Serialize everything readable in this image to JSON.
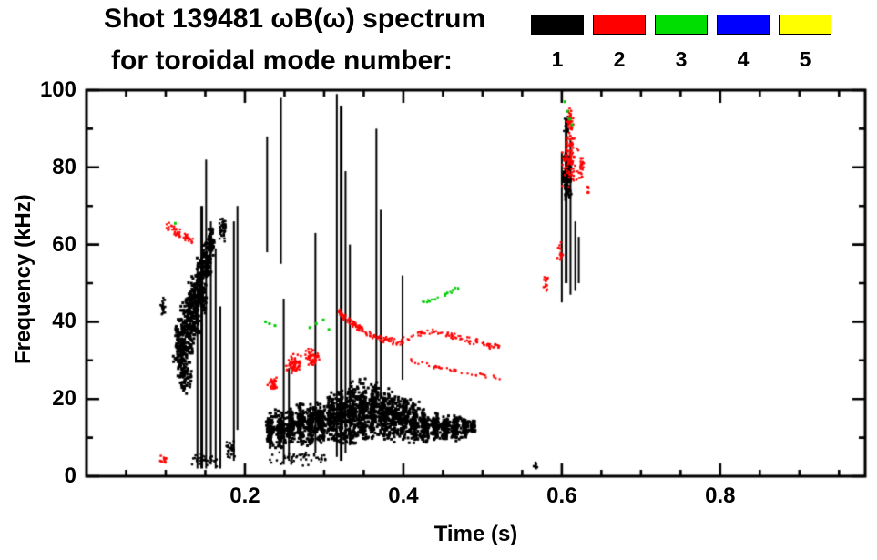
{
  "chart_data": {
    "type": "scatter",
    "title": "Shot 139481 ωB(ω) spectrum",
    "subtitle": "for toroidal mode number:",
    "xlabel": "Time (s)",
    "ylabel": "Frequency (kHz)",
    "xlim": [
      0,
      0.983
    ],
    "ylim": [
      0,
      100
    ],
    "xticks": [
      0.2,
      0.4,
      0.6,
      0.8
    ],
    "xtick_labels": [
      "0.2",
      "0.4",
      "0.6",
      "0.8"
    ],
    "x_minor_step": 0.05,
    "yticks": [
      0,
      20,
      40,
      60,
      80,
      100
    ],
    "ytick_labels": [
      "0",
      "20",
      "40",
      "60",
      "80",
      "100"
    ],
    "y_minor_step": 10,
    "grid": false,
    "legend_position": "top-right",
    "legend": [
      {
        "label": "1",
        "color": "#000000"
      },
      {
        "label": "2",
        "color": "#ff0000"
      },
      {
        "label": "3",
        "color": "#00dd00"
      },
      {
        "label": "4",
        "color": "#0000ff"
      },
      {
        "label": "5",
        "color": "#ffff00"
      }
    ],
    "series": [
      {
        "name": "mode-1",
        "color": "#000000",
        "vlines": [
          {
            "t": 0.14,
            "f0": 2,
            "f1": 55,
            "w": 2
          },
          {
            "t": 0.1455,
            "f0": 2,
            "f1": 70,
            "w": 3
          },
          {
            "t": 0.151,
            "f0": 2,
            "f1": 82,
            "w": 2
          },
          {
            "t": 0.157,
            "f0": 3,
            "f1": 66,
            "w": 2
          },
          {
            "t": 0.163,
            "f0": 2,
            "f1": 59,
            "w": 2
          },
          {
            "t": 0.169,
            "f0": 2,
            "f1": 44,
            "w": 2
          },
          {
            "t": 0.186,
            "f0": 4,
            "f1": 66,
            "w": 2
          },
          {
            "t": 0.1905,
            "f0": 12,
            "f1": 70,
            "w": 2
          },
          {
            "t": 0.228,
            "f0": 58,
            "f1": 88,
            "w": 2
          },
          {
            "t": 0.2455,
            "f0": 55,
            "f1": 98,
            "w": 2
          },
          {
            "t": 0.249,
            "f0": 3,
            "f1": 46,
            "w": 2
          },
          {
            "t": 0.2555,
            "f0": 4,
            "f1": 28,
            "w": 2
          },
          {
            "t": 0.289,
            "f0": 6,
            "f1": 63,
            "w": 2
          },
          {
            "t": 0.316,
            "f0": 5,
            "f1": 99,
            "w": 2
          },
          {
            "t": 0.3215,
            "f0": 4,
            "f1": 96,
            "w": 3
          },
          {
            "t": 0.327,
            "f0": 6,
            "f1": 79,
            "w": 2
          },
          {
            "t": 0.3325,
            "f0": 8,
            "f1": 60,
            "w": 2
          },
          {
            "t": 0.366,
            "f0": 18,
            "f1": 90,
            "w": 2
          },
          {
            "t": 0.3715,
            "f0": 20,
            "f1": 69,
            "w": 2
          },
          {
            "t": 0.399,
            "f0": 25,
            "f1": 52,
            "w": 2
          },
          {
            "t": 0.6,
            "f0": 45,
            "f1": 84,
            "w": 2
          },
          {
            "t": 0.6055,
            "f0": 50,
            "f1": 92,
            "w": 3
          },
          {
            "t": 0.611,
            "f0": 47,
            "f1": 87,
            "w": 2
          },
          {
            "t": 0.617,
            "f0": 48,
            "f1": 66,
            "w": 2
          },
          {
            "t": 0.6215,
            "f0": 50,
            "f1": 62,
            "w": 2
          }
        ],
        "clusters": [
          {
            "t": 0.097,
            "f": 44,
            "dt": 0.004,
            "df": 3,
            "n": 20
          },
          {
            "t": 0.118,
            "f": 33,
            "dt": 0.01,
            "df": 8,
            "n": 130,
            "s": 3
          },
          {
            "t": 0.125,
            "f": 26,
            "dt": 0.008,
            "df": 5,
            "n": 60,
            "s": 3
          },
          {
            "t": 0.127,
            "f": 38,
            "dt": 0.01,
            "df": 9,
            "n": 150,
            "s": 3
          },
          {
            "t": 0.136,
            "f": 44,
            "dt": 0.009,
            "df": 9,
            "n": 150,
            "s": 3
          },
          {
            "t": 0.145,
            "f": 50,
            "dt": 0.008,
            "df": 8,
            "n": 130,
            "s": 3
          },
          {
            "t": 0.152,
            "f": 56,
            "dt": 0.007,
            "df": 6,
            "n": 90,
            "s": 3
          },
          {
            "t": 0.157,
            "f": 61,
            "dt": 0.005,
            "df": 4,
            "n": 50,
            "s": 3
          },
          {
            "t": 0.172,
            "f": 64,
            "dt": 0.005,
            "df": 3.5,
            "n": 45
          },
          {
            "t": 0.182,
            "f": 7,
            "dt": 0.006,
            "df": 3,
            "n": 30
          },
          {
            "t": 0.15,
            "f": 4,
            "dt": 0.02,
            "df": 2,
            "n": 30
          },
          {
            "t": 0.27,
            "f": 4.5,
            "dt": 0.05,
            "df": 2,
            "n": 50
          },
          {
            "t": 0.232,
            "f": 12,
            "dt": 0.006,
            "df": 5,
            "n": 90,
            "s": 3
          },
          {
            "t": 0.245,
            "f": 12,
            "dt": 0.007,
            "df": 6,
            "n": 110,
            "s": 3
          },
          {
            "t": 0.258,
            "f": 13,
            "dt": 0.006,
            "df": 5,
            "n": 100,
            "s": 3
          },
          {
            "t": 0.27,
            "f": 14,
            "dt": 0.007,
            "df": 6,
            "n": 110,
            "s": 3
          },
          {
            "t": 0.283,
            "f": 13,
            "dt": 0.007,
            "df": 6,
            "n": 110,
            "s": 3
          },
          {
            "t": 0.296,
            "f": 14,
            "dt": 0.007,
            "df": 6,
            "n": 120,
            "s": 3
          },
          {
            "t": 0.309,
            "f": 15,
            "dt": 0.007,
            "df": 7,
            "n": 130,
            "s": 3
          },
          {
            "t": 0.322,
            "f": 15,
            "dt": 0.008,
            "df": 8,
            "n": 140,
            "s": 3
          },
          {
            "t": 0.335,
            "f": 16,
            "dt": 0.008,
            "df": 9,
            "n": 150,
            "s": 3
          },
          {
            "t": 0.349,
            "f": 17,
            "dt": 0.008,
            "df": 9,
            "n": 150,
            "s": 3
          },
          {
            "t": 0.362,
            "f": 17,
            "dt": 0.008,
            "df": 8,
            "n": 140,
            "s": 3
          },
          {
            "t": 0.375,
            "f": 16,
            "dt": 0.008,
            "df": 7,
            "n": 130,
            "s": 3
          },
          {
            "t": 0.388,
            "f": 15,
            "dt": 0.008,
            "df": 7,
            "n": 130,
            "s": 3
          },
          {
            "t": 0.401,
            "f": 15,
            "dt": 0.008,
            "df": 6,
            "n": 120,
            "s": 3
          },
          {
            "t": 0.414,
            "f": 14,
            "dt": 0.007,
            "df": 6,
            "n": 110,
            "s": 3
          },
          {
            "t": 0.427,
            "f": 13,
            "dt": 0.007,
            "df": 5,
            "n": 100,
            "s": 3
          },
          {
            "t": 0.44,
            "f": 13,
            "dt": 0.007,
            "df": 4,
            "n": 90,
            "s": 3
          },
          {
            "t": 0.453,
            "f": 12.5,
            "dt": 0.006,
            "df": 4,
            "n": 80,
            "s": 3
          },
          {
            "t": 0.466,
            "f": 12.5,
            "dt": 0.006,
            "df": 3.5,
            "n": 70,
            "s": 3
          },
          {
            "t": 0.478,
            "f": 12.5,
            "dt": 0.006,
            "df": 3,
            "n": 60,
            "s": 3
          },
          {
            "t": 0.488,
            "f": 13,
            "dt": 0.004,
            "df": 2.5,
            "n": 40,
            "s": 3
          },
          {
            "t": 0.567,
            "f": 2.5,
            "dt": 0.003,
            "df": 1.5,
            "n": 10
          },
          {
            "t": 0.607,
            "f": 78,
            "dt": 0.006,
            "df": 7,
            "n": 120,
            "s": 3
          },
          {
            "t": 0.606,
            "f": 91,
            "dt": 0.004,
            "df": 3,
            "n": 25
          }
        ],
        "traces": [],
        "dots": []
      },
      {
        "name": "mode-2",
        "color": "#ff0000",
        "vlines": [],
        "clusters": [
          {
            "t": 0.098,
            "f": 4.5,
            "dt": 0.006,
            "df": 1.5,
            "n": 12
          },
          {
            "t": 0.236,
            "f": 24,
            "dt": 0.008,
            "df": 2,
            "n": 30
          },
          {
            "t": 0.262,
            "f": 29,
            "dt": 0.012,
            "df": 3,
            "n": 55
          },
          {
            "t": 0.285,
            "f": 31,
            "dt": 0.01,
            "df": 2.5,
            "n": 45
          },
          {
            "t": 0.58,
            "f": 50,
            "dt": 0.003,
            "df": 2.5,
            "n": 14
          },
          {
            "t": 0.598,
            "f": 58,
            "dt": 0.004,
            "df": 3,
            "n": 14
          },
          {
            "t": 0.61,
            "f": 82,
            "dt": 0.012,
            "df": 8,
            "n": 90
          },
          {
            "t": 0.611,
            "f": 92,
            "dt": 0.005,
            "df": 3.5,
            "n": 35
          },
          {
            "t": 0.625,
            "f": 80,
            "dt": 0.004,
            "df": 4,
            "n": 25
          },
          {
            "t": 0.633,
            "f": 75,
            "dt": 0.002,
            "df": 2,
            "n": 8
          }
        ],
        "traces": [
          {
            "pts": [
              [
                0.1,
                65
              ],
              [
                0.112,
                63.5
              ],
              [
                0.124,
                62
              ],
              [
                0.136,
                61
              ]
            ],
            "n": 55,
            "jf": 1.4,
            "jt": 0.003
          },
          {
            "pts": [
              [
                0.315,
                43.5
              ],
              [
                0.328,
                40.5
              ],
              [
                0.342,
                38.5
              ],
              [
                0.357,
                37
              ],
              [
                0.375,
                35.5
              ],
              [
                0.395,
                34.5
              ]
            ],
            "n": 120,
            "jf": 1.0,
            "jt": 0.003
          },
          {
            "pts": [
              [
                0.397,
                35
              ],
              [
                0.415,
                36.5
              ],
              [
                0.432,
                37.5
              ],
              [
                0.45,
                37
              ],
              [
                0.468,
                36
              ],
              [
                0.487,
                35
              ],
              [
                0.505,
                34
              ],
              [
                0.522,
                33.5
              ]
            ],
            "n": 95,
            "jf": 0.9,
            "jt": 0.003
          },
          {
            "pts": [
              [
                0.41,
                30
              ],
              [
                0.435,
                28.5
              ],
              [
                0.46,
                27.5
              ],
              [
                0.485,
                26.5
              ],
              [
                0.51,
                25.8
              ],
              [
                0.525,
                25.3
              ]
            ],
            "n": 40,
            "jf": 0.6,
            "jt": 0.003
          }
        ],
        "dots": []
      },
      {
        "name": "mode-3",
        "color": "#00cc00",
        "vlines": [],
        "clusters": [],
        "traces": [
          {
            "pts": [
              [
                0.423,
                44.5
              ],
              [
                0.44,
                46
              ],
              [
                0.457,
                47.5
              ],
              [
                0.472,
                49
              ]
            ],
            "n": 26,
            "jf": 0.7,
            "jt": 0.003
          }
        ],
        "dots": [
          [
            0.112,
            65.5
          ],
          [
            0.226,
            40
          ],
          [
            0.231,
            39.5
          ],
          [
            0.238,
            39
          ],
          [
            0.282,
            38.5
          ],
          [
            0.29,
            39.5
          ],
          [
            0.299,
            40.5
          ],
          [
            0.306,
            38
          ],
          [
            0.601,
            100
          ],
          [
            0.604,
            97
          ],
          [
            0.607,
            94.5
          ],
          [
            0.61,
            92.5
          ],
          [
            0.613,
            91
          ]
        ]
      },
      {
        "name": "mode-4",
        "color": "#0000ff",
        "vlines": [],
        "clusters": [],
        "traces": [],
        "dots": []
      },
      {
        "name": "mode-5",
        "color": "#ffff00",
        "vlines": [],
        "clusters": [],
        "traces": [],
        "dots": []
      }
    ]
  }
}
